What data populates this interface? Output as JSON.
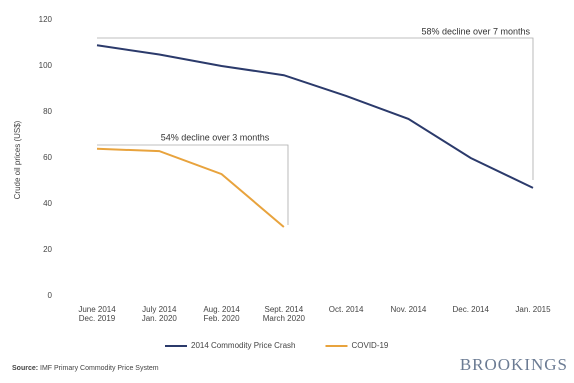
{
  "chart_data": {
    "type": "line",
    "y_label": "Crude oil prices (US$)",
    "categories": [
      [
        "June 2014",
        "Dec. 2019"
      ],
      [
        "July 2014",
        "Jan. 2020"
      ],
      [
        "Aug. 2014",
        "Feb. 2020"
      ],
      [
        "Sept. 2014",
        "March 2020"
      ],
      [
        "Oct. 2014"
      ],
      [
        "Nov. 2014"
      ],
      [
        "Dec. 2014"
      ],
      [
        "Jan. 2015"
      ]
    ],
    "series": [
      {
        "name": "2014 Commodity Price Crash",
        "color": "#2b3a6b",
        "values": [
          109,
          105,
          100,
          96,
          87,
          77,
          60,
          47
        ]
      },
      {
        "name": "COVID-19",
        "color": "#e8a33d",
        "values": [
          64,
          63,
          53,
          30,
          null,
          null,
          null,
          null
        ]
      }
    ],
    "ylim": [
      0,
      120
    ],
    "yticks": [
      0,
      20,
      40,
      60,
      80,
      100,
      120
    ],
    "annotations": [
      "58% decline over 7 months",
      "54% decline over 3 months"
    ],
    "source_label": "Source:",
    "source": "IMF Primary Commodity Price System",
    "logo": "BROOKINGS"
  }
}
